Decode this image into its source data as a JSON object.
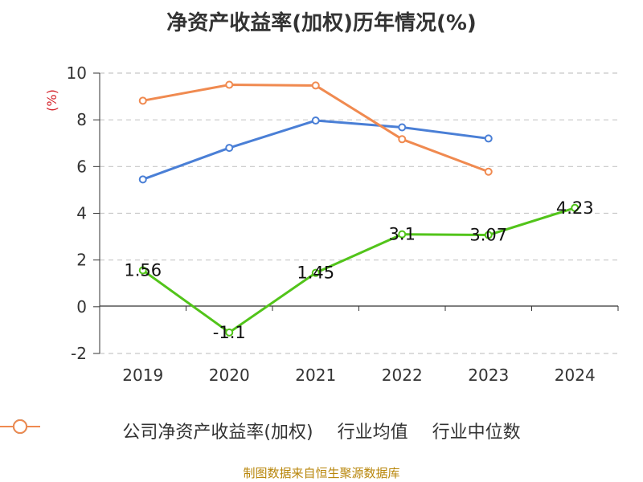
{
  "chart_data": {
    "type": "line",
    "title": "净资产收益率(加权)历年情况(%)",
    "ylabel": "(%)",
    "xlabel": "",
    "categories": [
      "2019",
      "2020",
      "2021",
      "2022",
      "2023",
      "2024"
    ],
    "ylim": [
      -2,
      10
    ],
    "yticks": [
      -2,
      0,
      2,
      4,
      6,
      8,
      10
    ],
    "grid": true,
    "legend_position": "bottom",
    "series": [
      {
        "name": "公司净资产收益率(加权)",
        "color": "#52c41a",
        "values": [
          1.56,
          -1.1,
          1.45,
          3.1,
          3.07,
          4.23
        ],
        "labels": [
          "1.56",
          "-1.1",
          "1.45",
          "3.1",
          "3.07",
          "4.23"
        ]
      },
      {
        "name": "行业均值",
        "color": "#4a7fd6",
        "values": [
          5.45,
          6.8,
          7.97,
          7.68,
          7.2,
          null
        ]
      },
      {
        "name": "行业中位数",
        "color": "#f08a50",
        "values": [
          8.82,
          9.5,
          9.47,
          7.17,
          5.78,
          null
        ]
      }
    ]
  },
  "source": "制图数据来自恒生聚源数据库"
}
